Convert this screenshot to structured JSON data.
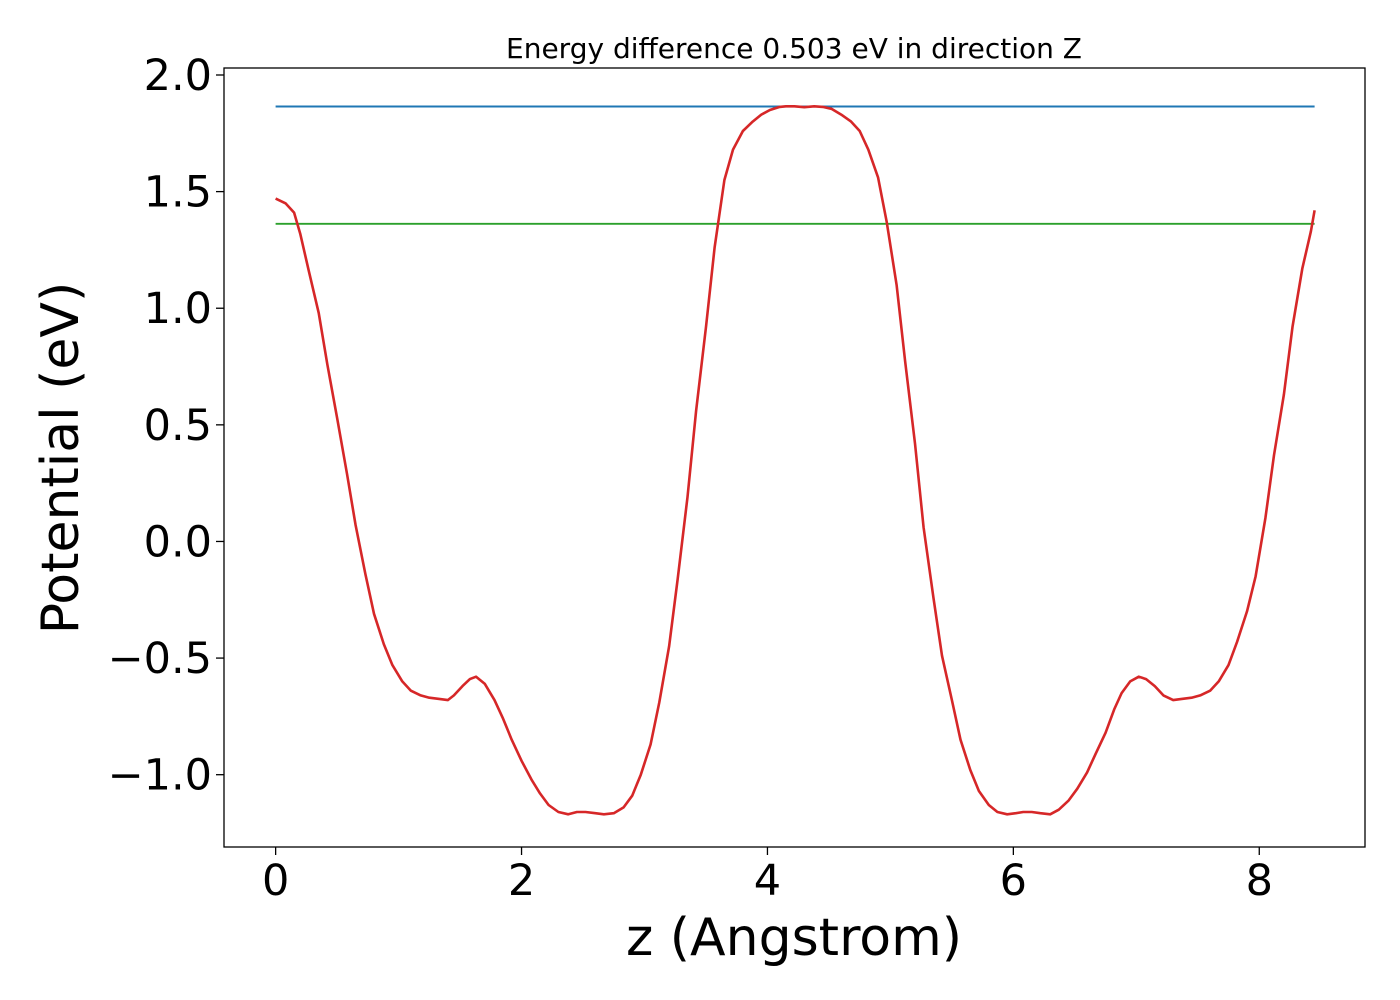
{
  "chart_data": {
    "type": "line",
    "title": "Energy difference 0.503 eV in direction Z",
    "xlabel": "z (Angstrom)",
    "ylabel": "Potential (eV)",
    "xlim": [
      -0.42,
      8.86
    ],
    "ylim": [
      -1.31,
      2.03
    ],
    "x_ticks": [
      0,
      2,
      4,
      6,
      8
    ],
    "x_tick_labels": [
      "0",
      "2",
      "4",
      "6",
      "8"
    ],
    "y_ticks": [
      -1.0,
      -0.5,
      0.0,
      0.5,
      1.0,
      1.5,
      2.0
    ],
    "y_tick_labels": [
      "−1.0",
      "−0.5",
      "0.0",
      "0.5",
      "1.0",
      "1.5",
      "2.0"
    ],
    "grid": false,
    "series": [
      {
        "color": "#1f77b4",
        "x": [
          0,
          8.45
        ],
        "y": [
          1.865,
          1.865
        ]
      },
      {
        "color": "#2ca02c",
        "x": [
          0,
          8.45
        ],
        "y": [
          1.362,
          1.362
        ]
      },
      {
        "color": "#d62728",
        "x": [
          0,
          0.08,
          0.15,
          0.2,
          0.27,
          0.35,
          0.42,
          0.5,
          0.58,
          0.65,
          0.73,
          0.8,
          0.88,
          0.95,
          1.03,
          1.1,
          1.18,
          1.25,
          1.33,
          1.4,
          1.45,
          1.52,
          1.58,
          1.63,
          1.7,
          1.78,
          1.85,
          1.92,
          2.0,
          2.08,
          2.15,
          2.22,
          2.3,
          2.38,
          2.45,
          2.52,
          2.6,
          2.67,
          2.75,
          2.83,
          2.9,
          2.97,
          3.05,
          3.12,
          3.2,
          3.27,
          3.35,
          3.42,
          3.5,
          3.57,
          3.65,
          3.72,
          3.8,
          3.88,
          3.95,
          4.02,
          4.1,
          4.15,
          4.22,
          4.3,
          4.38,
          4.45,
          4.52,
          4.6,
          4.68,
          4.75,
          4.82,
          4.9,
          4.97,
          5.05,
          5.12,
          5.2,
          5.27,
          5.35,
          5.42,
          5.5,
          5.57,
          5.65,
          5.72,
          5.8,
          5.87,
          5.95,
          6.02,
          6.08,
          6.15,
          6.22,
          6.3,
          6.37,
          6.45,
          6.52,
          6.6,
          6.67,
          6.75,
          6.82,
          6.88,
          6.95,
          7.02,
          7.08,
          7.15,
          7.22,
          7.3,
          7.37,
          7.45,
          7.52,
          7.6,
          7.67,
          7.75,
          7.82,
          7.9,
          7.97,
          8.05,
          8.12,
          8.2,
          8.27,
          8.35,
          8.42,
          8.45
        ],
        "y": [
          1.47,
          1.45,
          1.41,
          1.32,
          1.16,
          0.98,
          0.76,
          0.53,
          0.29,
          0.07,
          -0.14,
          -0.31,
          -0.44,
          -0.53,
          -0.6,
          -0.64,
          -0.66,
          -0.67,
          -0.675,
          -0.68,
          -0.66,
          -0.62,
          -0.59,
          -0.58,
          -0.61,
          -0.68,
          -0.76,
          -0.85,
          -0.94,
          -1.02,
          -1.08,
          -1.13,
          -1.16,
          -1.17,
          -1.16,
          -1.16,
          -1.165,
          -1.17,
          -1.165,
          -1.14,
          -1.09,
          -1.0,
          -0.87,
          -0.69,
          -0.45,
          -0.16,
          0.19,
          0.56,
          0.92,
          1.26,
          1.55,
          1.68,
          1.76,
          1.8,
          1.83,
          1.85,
          1.863,
          1.866,
          1.866,
          1.862,
          1.866,
          1.863,
          1.855,
          1.83,
          1.8,
          1.76,
          1.68,
          1.56,
          1.37,
          1.1,
          0.77,
          0.42,
          0.06,
          -0.24,
          -0.49,
          -0.68,
          -0.85,
          -0.98,
          -1.07,
          -1.13,
          -1.16,
          -1.17,
          -1.165,
          -1.16,
          -1.16,
          -1.165,
          -1.17,
          -1.15,
          -1.11,
          -1.06,
          -0.99,
          -0.91,
          -0.82,
          -0.72,
          -0.65,
          -0.6,
          -0.58,
          -0.59,
          -0.62,
          -0.66,
          -0.68,
          -0.675,
          -0.67,
          -0.66,
          -0.64,
          -0.6,
          -0.53,
          -0.43,
          -0.3,
          -0.15,
          0.1,
          0.37,
          0.63,
          0.92,
          1.17,
          1.33,
          1.42
        ]
      }
    ]
  }
}
